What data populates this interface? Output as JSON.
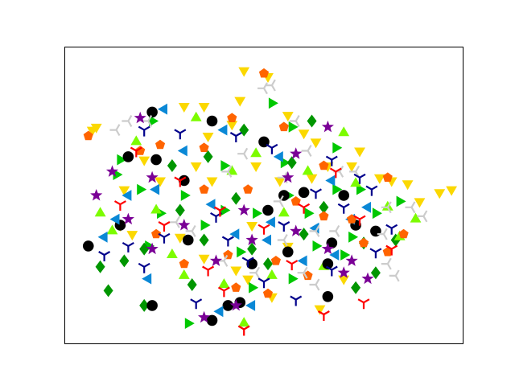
{
  "chart_data": {
    "type": "scatter",
    "title": "",
    "xlabel": "",
    "ylabel": "",
    "xlim": [
      0,
      100
    ],
    "ylim": [
      0,
      100
    ],
    "x_ticks": [],
    "y_ticks": [],
    "grid": false,
    "legend": "none",
    "series": [
      {
        "color": "#fbd800",
        "marker": "triangle-down",
        "points": [
          [
            45,
            92
          ],
          [
            51,
            90
          ],
          [
            44,
            82
          ],
          [
            30,
            80
          ],
          [
            35,
            80
          ],
          [
            56,
            77
          ],
          [
            60,
            71
          ],
          [
            63,
            68
          ],
          [
            74,
            65
          ],
          [
            72,
            60
          ],
          [
            79,
            56
          ],
          [
            86,
            54
          ],
          [
            94,
            51
          ],
          [
            97,
            52
          ],
          [
            89,
            48
          ],
          [
            82,
            55
          ],
          [
            66,
            60
          ],
          [
            62,
            56
          ],
          [
            54,
            55
          ],
          [
            48,
            60
          ],
          [
            37,
            55
          ],
          [
            24,
            55
          ],
          [
            15,
            52
          ],
          [
            7,
            72
          ],
          [
            8,
            73
          ],
          [
            20,
            62
          ],
          [
            14,
            40
          ],
          [
            17,
            37
          ],
          [
            35,
            29
          ],
          [
            43,
            25
          ],
          [
            46,
            22
          ],
          [
            52,
            16
          ],
          [
            64,
            12
          ],
          [
            70,
            22
          ],
          [
            29,
            36
          ],
          [
            33,
            60
          ],
          [
            42,
            74
          ],
          [
            36,
            70
          ],
          [
            47,
            40
          ],
          [
            56,
            33
          ]
        ]
      },
      {
        "color": "#00c800",
        "marker": "triangle-right",
        "points": [
          [
            22,
            75
          ],
          [
            52,
            81
          ],
          [
            57,
            73
          ],
          [
            68,
            66
          ],
          [
            74,
            52
          ],
          [
            68,
            52
          ],
          [
            78,
            44
          ],
          [
            72,
            36
          ],
          [
            61,
            44
          ],
          [
            48,
            44
          ],
          [
            35,
            40
          ],
          [
            24,
            44
          ],
          [
            14,
            62
          ],
          [
            19,
            52
          ],
          [
            13,
            57
          ],
          [
            30,
            50
          ],
          [
            40,
            60
          ],
          [
            55,
            61
          ],
          [
            63,
            33
          ],
          [
            70,
            30
          ],
          [
            57,
            22
          ],
          [
            47,
            19
          ],
          [
            31,
            7
          ],
          [
            44,
            31
          ],
          [
            21,
            33
          ],
          [
            40,
            45
          ],
          [
            56,
            50
          ],
          [
            84,
            48
          ]
        ]
      },
      {
        "color": "#009600",
        "marker": "diamond",
        "points": [
          [
            20,
            32
          ],
          [
            32,
            20
          ],
          [
            47,
            32
          ],
          [
            65,
            46
          ],
          [
            75,
            34
          ],
          [
            78,
            24
          ],
          [
            73,
            19
          ],
          [
            51,
            27
          ],
          [
            15,
            28
          ],
          [
            29,
            45
          ],
          [
            43,
            49
          ],
          [
            36,
            63
          ],
          [
            57,
            61
          ],
          [
            45,
            72
          ],
          [
            62,
            75
          ],
          [
            20,
            13
          ],
          [
            11,
            18
          ],
          [
            9,
            26
          ],
          [
            60,
            37
          ],
          [
            83,
            35
          ],
          [
            27,
            60
          ],
          [
            35,
            35
          ]
        ]
      },
      {
        "color": "#7cfc00",
        "marker": "triangle-up",
        "points": [
          [
            18,
            68
          ],
          [
            33,
            76
          ],
          [
            48,
            64
          ],
          [
            61,
            58
          ],
          [
            73,
            54
          ],
          [
            81,
            46
          ],
          [
            88,
            42
          ],
          [
            84,
            36
          ],
          [
            65,
            26
          ],
          [
            52,
            23
          ],
          [
            40,
            20
          ],
          [
            27,
            30
          ],
          [
            12,
            38
          ],
          [
            9,
            44
          ],
          [
            23,
            45
          ],
          [
            42,
            58
          ],
          [
            55,
            44
          ],
          [
            70,
            71
          ],
          [
            30,
            23
          ],
          [
            45,
            7
          ]
        ]
      },
      {
        "color": "#000000",
        "marker": "circle",
        "points": [
          [
            22,
            78
          ],
          [
            37,
            75
          ],
          [
            50,
            68
          ],
          [
            23,
            62
          ],
          [
            16,
            63
          ],
          [
            51,
            45
          ],
          [
            55,
            50
          ],
          [
            73,
            40
          ],
          [
            78,
            38
          ],
          [
            67,
            34
          ],
          [
            56,
            31
          ],
          [
            66,
            27
          ],
          [
            47,
            27
          ],
          [
            31,
            35
          ],
          [
            14,
            40
          ],
          [
            6,
            33
          ],
          [
            41,
            13
          ],
          [
            44,
            14
          ],
          [
            37,
            8
          ],
          [
            22,
            13
          ],
          [
            66,
            16
          ],
          [
            30,
            55
          ],
          [
            60,
            51
          ],
          [
            70,
            50
          ]
        ]
      },
      {
        "color": "#0a88d6",
        "marker": "triangle-left",
        "points": [
          [
            25,
            79
          ],
          [
            40,
            72
          ],
          [
            54,
            63
          ],
          [
            67,
            55
          ],
          [
            76,
            46
          ],
          [
            72,
            42
          ],
          [
            63,
            39
          ],
          [
            51,
            35
          ],
          [
            43,
            37
          ],
          [
            37,
            47
          ],
          [
            23,
            52
          ],
          [
            16,
            50
          ],
          [
            10,
            36
          ],
          [
            13,
            42
          ],
          [
            21,
            22
          ],
          [
            39,
            11
          ],
          [
            47,
            13
          ],
          [
            60,
            28
          ],
          [
            68,
            30
          ],
          [
            52,
            41
          ],
          [
            30,
            65
          ]
        ]
      },
      {
        "color": "#ff6400",
        "marker": "pentagon",
        "points": [
          [
            50,
            91
          ],
          [
            55,
            73
          ],
          [
            42,
            76
          ],
          [
            35,
            66
          ],
          [
            24,
            67
          ],
          [
            6,
            70
          ],
          [
            35,
            52
          ],
          [
            46,
            52
          ],
          [
            58,
            48
          ],
          [
            65,
            60
          ],
          [
            72,
            42
          ],
          [
            81,
            56
          ],
          [
            85,
            37
          ],
          [
            81,
            31
          ],
          [
            75,
            34
          ],
          [
            61,
            23
          ],
          [
            51,
            17
          ],
          [
            43,
            19
          ],
          [
            30,
            27
          ],
          [
            23,
            37
          ],
          [
            41,
            30
          ],
          [
            53,
            28
          ],
          [
            65,
            43
          ],
          [
            19,
            65
          ]
        ]
      },
      {
        "color": "#cccccc",
        "marker": "tri-left",
        "points": [
          [
            50,
            86
          ],
          [
            52,
            87
          ],
          [
            21,
            75
          ],
          [
            16,
            75
          ],
          [
            13,
            72
          ],
          [
            58,
            75
          ],
          [
            61,
            65
          ],
          [
            55,
            56
          ],
          [
            69,
            58
          ],
          [
            73,
            58
          ],
          [
            81,
            46
          ],
          [
            87,
            46
          ],
          [
            90,
            43
          ],
          [
            81,
            27
          ],
          [
            83,
            23
          ],
          [
            63,
            38
          ],
          [
            68,
            38
          ],
          [
            55,
            35
          ],
          [
            60,
            24
          ],
          [
            48,
            24
          ],
          [
            40,
            28
          ],
          [
            32,
            38
          ],
          [
            28,
            41
          ],
          [
            41,
            58
          ],
          [
            54,
            48
          ],
          [
            45,
            64
          ],
          [
            63,
            20
          ],
          [
            80,
            37
          ]
        ]
      },
      {
        "color": "#7a0096",
        "marker": "star",
        "points": [
          [
            19,
            76
          ],
          [
            66,
            73
          ],
          [
            12,
            58
          ],
          [
            8,
            50
          ],
          [
            22,
            56
          ],
          [
            30,
            40
          ],
          [
            38,
            28
          ],
          [
            47,
            35
          ],
          [
            58,
            38
          ],
          [
            66,
            32
          ],
          [
            72,
            28
          ],
          [
            76,
            22
          ],
          [
            70,
            24
          ],
          [
            56,
            56
          ],
          [
            45,
            45
          ],
          [
            43,
            13
          ],
          [
            35,
            9
          ],
          [
            22,
            32
          ],
          [
            16,
            42
          ],
          [
            58,
            64
          ]
        ]
      },
      {
        "color": "#00008b",
        "marker": "tri-down",
        "points": [
          [
            20,
            72
          ],
          [
            29,
            71
          ],
          [
            43,
            70
          ],
          [
            52,
            66
          ],
          [
            67,
            62
          ],
          [
            74,
            56
          ],
          [
            77,
            52
          ],
          [
            70,
            46
          ],
          [
            82,
            39
          ],
          [
            78,
            31
          ],
          [
            67,
            25
          ],
          [
            58,
            15
          ],
          [
            50,
            21
          ],
          [
            46,
            28
          ],
          [
            41,
            35
          ],
          [
            25,
            36
          ],
          [
            20,
            26
          ],
          [
            16,
            33
          ],
          [
            10,
            30
          ],
          [
            33,
            14
          ],
          [
            38,
            43
          ],
          [
            55,
            40
          ],
          [
            63,
            51
          ]
        ]
      },
      {
        "color": "#ff0000",
        "marker": "tri-down",
        "points": [
          [
            18,
            65
          ],
          [
            29,
            55
          ],
          [
            39,
            45
          ],
          [
            50,
            39
          ],
          [
            60,
            46
          ],
          [
            74,
            42
          ],
          [
            82,
            32
          ],
          [
            75,
            14
          ],
          [
            65,
            10
          ],
          [
            45,
            5
          ],
          [
            25,
            40
          ],
          [
            40,
            18
          ],
          [
            57,
            27
          ],
          [
            68,
            58
          ],
          [
            14,
            47
          ],
          [
            36,
            25
          ]
        ]
      }
    ]
  }
}
